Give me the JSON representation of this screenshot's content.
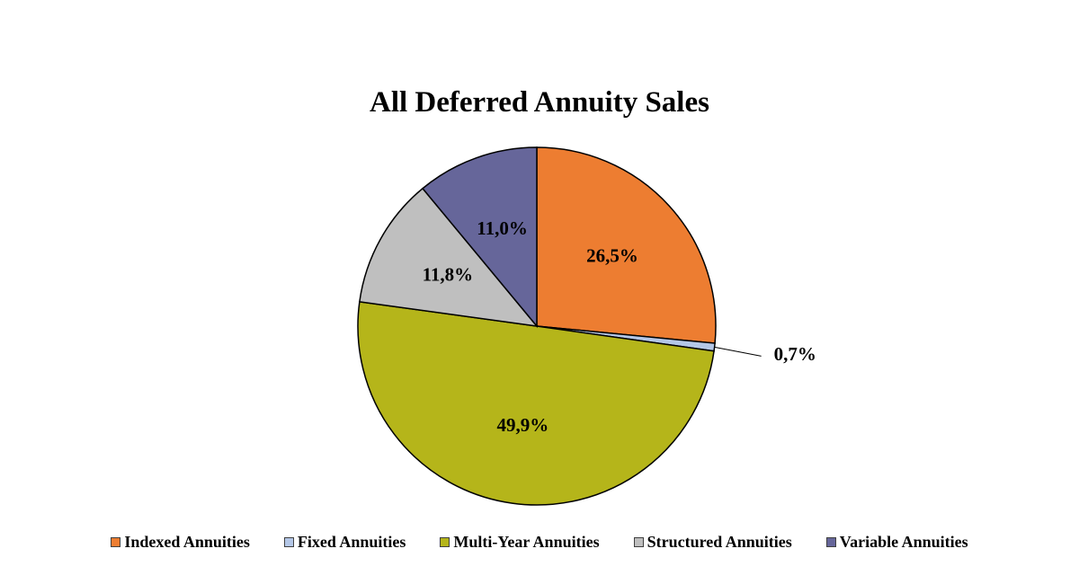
{
  "chart_data": {
    "type": "pie",
    "title": "All Deferred Annuity Sales",
    "slices": [
      {
        "name": "Indexed Annuities",
        "value": 26.5,
        "label": "26,5%",
        "color": "#ED7D31"
      },
      {
        "name": "Fixed Annuities",
        "value": 0.7,
        "label": "0,7%",
        "color": "#B4C7E7"
      },
      {
        "name": "Multi-Year Annuities",
        "value": 49.9,
        "label": "49,9%",
        "color": "#B5B51A"
      },
      {
        "name": "Structured Annuities",
        "value": 11.8,
        "label": "11,8%",
        "color": "#BFBFBF"
      },
      {
        "name": "Variable Annuities",
        "value": 11.0,
        "label": "11,0%",
        "color": "#66669A"
      }
    ],
    "legend_position": "bottom",
    "start_angle": "12 o'clock",
    "direction": "clockwise"
  }
}
